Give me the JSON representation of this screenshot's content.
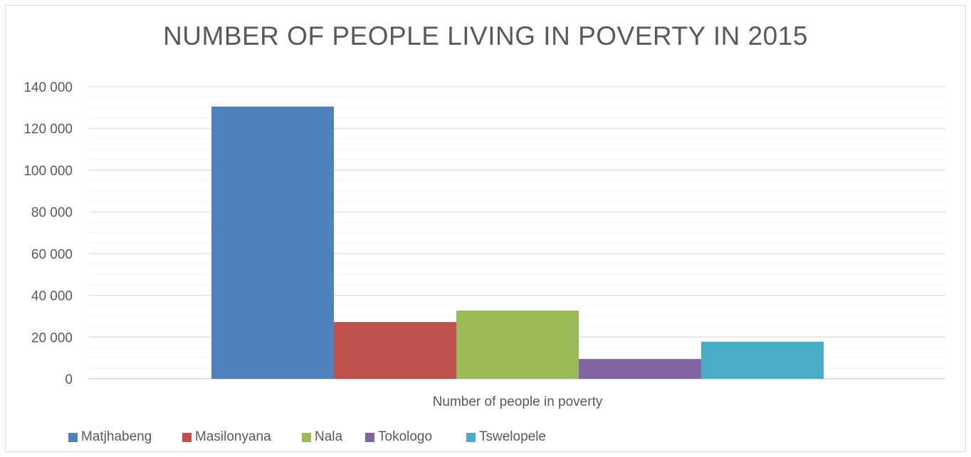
{
  "chart_data": {
    "type": "bar",
    "title": "NUMBER OF PEOPLE LIVING IN POVERTY IN 2015",
    "categories": [
      "Number of people in poverty"
    ],
    "series": [
      {
        "name": "Matjhabeng",
        "values": [
          130500
        ],
        "color": "#4F81BD"
      },
      {
        "name": "Masilonyana",
        "values": [
          27200
        ],
        "color": "#C0504D"
      },
      {
        "name": "Nala",
        "values": [
          32700
        ],
        "color": "#9BBB59"
      },
      {
        "name": "Tokologo",
        "values": [
          9500
        ],
        "color": "#8064A2"
      },
      {
        "name": "Tswelopele",
        "values": [
          17800
        ],
        "color": "#4BACC6"
      }
    ],
    "ylim": [
      0,
      140000
    ],
    "yticks": [
      0,
      20000,
      40000,
      60000,
      80000,
      100000,
      120000,
      140000
    ],
    "ytick_labels": [
      "0",
      "20 000",
      "40 000",
      "60 000",
      "80 000",
      "100 000",
      "120 000",
      "140 000"
    ],
    "grid": true,
    "legend_position": "bottom"
  }
}
